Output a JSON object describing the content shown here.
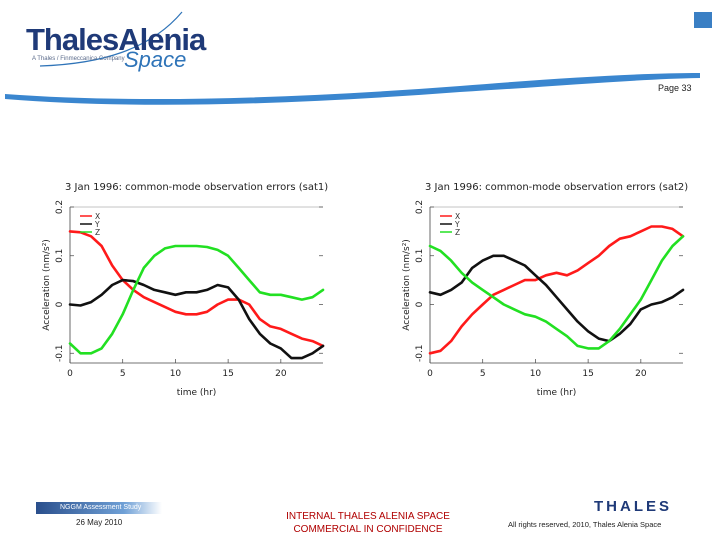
{
  "header": {
    "logo_main": "ThalesAlenia",
    "logo_sub": "A Thales / Finmeccanica Company",
    "logo_space": "Space",
    "page_number": "Page 33"
  },
  "footer": {
    "study": "NGGM Assessment Study",
    "date": "26 May 2010",
    "internal_line1": "INTERNAL THALES ALENIA SPACE",
    "internal_line2": "COMMERCIAL IN CONFIDENCE",
    "brand": "THALES",
    "rights": "All rights reserved, 2010, Thales Alenia Space"
  },
  "colors": {
    "x": "#ff1a1a",
    "y": "#111111",
    "z": "#22e022",
    "brand": "#1f3a78"
  },
  "chart_data": [
    {
      "type": "line",
      "title": "3 Jan 1996: common-mode observation errors (sat1)",
      "xlabel": "time (hr)",
      "ylabel": "Acceleration (nm/s²)",
      "xlim": [
        0,
        24
      ],
      "ylim": [
        -0.12,
        0.2
      ],
      "xticks": [
        0,
        5,
        10,
        15,
        20
      ],
      "yticks": [
        -0.1,
        0,
        0.1,
        0.2
      ],
      "legend_position": "top-left",
      "series": [
        {
          "name": "X",
          "color": "#ff1a1a",
          "x": [
            0,
            1,
            2,
            3,
            4,
            5,
            6,
            7,
            8,
            9,
            10,
            11,
            12,
            13,
            14,
            15,
            16,
            17,
            18,
            19,
            20,
            21,
            22,
            23,
            24
          ],
          "y": [
            0.15,
            0.148,
            0.14,
            0.12,
            0.08,
            0.05,
            0.03,
            0.015,
            0.005,
            -0.005,
            -0.015,
            -0.02,
            -0.02,
            -0.015,
            0,
            0.01,
            0.01,
            0.0,
            -0.03,
            -0.045,
            -0.05,
            -0.06,
            -0.07,
            -0.075,
            -0.085
          ]
        },
        {
          "name": "Y",
          "color": "#111111",
          "x": [
            0,
            1,
            2,
            3,
            4,
            5,
            6,
            7,
            8,
            9,
            10,
            11,
            12,
            13,
            14,
            15,
            16,
            17,
            18,
            19,
            20,
            21,
            22,
            23,
            24
          ],
          "y": [
            0.0,
            -0.002,
            0.005,
            0.02,
            0.04,
            0.05,
            0.048,
            0.04,
            0.03,
            0.025,
            0.02,
            0.025,
            0.025,
            0.03,
            0.04,
            0.035,
            0.01,
            -0.03,
            -0.06,
            -0.08,
            -0.09,
            -0.11,
            -0.11,
            -0.1,
            -0.085
          ]
        },
        {
          "name": "Z",
          "color": "#22e022",
          "x": [
            0,
            1,
            2,
            3,
            4,
            5,
            6,
            7,
            8,
            9,
            10,
            11,
            12,
            13,
            14,
            15,
            16,
            17,
            18,
            19,
            20,
            21,
            22,
            23,
            24
          ],
          "y": [
            -0.08,
            -0.1,
            -0.1,
            -0.09,
            -0.06,
            -0.02,
            0.03,
            0.075,
            0.1,
            0.115,
            0.12,
            0.12,
            0.12,
            0.118,
            0.112,
            0.1,
            0.075,
            0.05,
            0.025,
            0.02,
            0.02,
            0.015,
            0.01,
            0.015,
            0.03
          ]
        }
      ]
    },
    {
      "type": "line",
      "title": "3 Jan 1996: common-mode observation errors (sat2)",
      "xlabel": "time (hr)",
      "ylabel": "Acceleration (nm/s²)",
      "xlim": [
        0,
        24
      ],
      "ylim": [
        -0.12,
        0.2
      ],
      "xticks": [
        0,
        5,
        10,
        15,
        20
      ],
      "yticks": [
        -0.1,
        0,
        0.1,
        0.2
      ],
      "legend_position": "top-left",
      "series": [
        {
          "name": "X",
          "color": "#ff1a1a",
          "x": [
            0,
            1,
            2,
            3,
            4,
            5,
            6,
            7,
            8,
            9,
            10,
            11,
            12,
            13,
            14,
            15,
            16,
            17,
            18,
            19,
            20,
            21,
            22,
            23,
            24
          ],
          "y": [
            -0.1,
            -0.095,
            -0.075,
            -0.045,
            -0.02,
            0.0,
            0.02,
            0.03,
            0.04,
            0.05,
            0.05,
            0.06,
            0.065,
            0.06,
            0.07,
            0.085,
            0.1,
            0.12,
            0.135,
            0.14,
            0.15,
            0.16,
            0.16,
            0.155,
            0.14
          ]
        },
        {
          "name": "Y",
          "color": "#111111",
          "x": [
            0,
            1,
            2,
            3,
            4,
            5,
            6,
            7,
            8,
            9,
            10,
            11,
            12,
            13,
            14,
            15,
            16,
            17,
            18,
            19,
            20,
            21,
            22,
            23,
            24
          ],
          "y": [
            0.025,
            0.02,
            0.03,
            0.045,
            0.075,
            0.09,
            0.1,
            0.1,
            0.09,
            0.08,
            0.06,
            0.04,
            0.015,
            -0.01,
            -0.035,
            -0.055,
            -0.07,
            -0.075,
            -0.06,
            -0.04,
            -0.01,
            0.0,
            0.005,
            0.015,
            0.03
          ]
        },
        {
          "name": "Z",
          "color": "#22e022",
          "x": [
            0,
            1,
            2,
            3,
            4,
            5,
            6,
            7,
            8,
            9,
            10,
            11,
            12,
            13,
            14,
            15,
            16,
            17,
            18,
            19,
            20,
            21,
            22,
            23,
            24
          ],
          "y": [
            0.12,
            0.11,
            0.09,
            0.065,
            0.045,
            0.03,
            0.015,
            0.0,
            -0.01,
            -0.02,
            -0.025,
            -0.035,
            -0.05,
            -0.065,
            -0.085,
            -0.09,
            -0.09,
            -0.075,
            -0.05,
            -0.02,
            0.01,
            0.05,
            0.09,
            0.12,
            0.14
          ]
        }
      ]
    }
  ]
}
